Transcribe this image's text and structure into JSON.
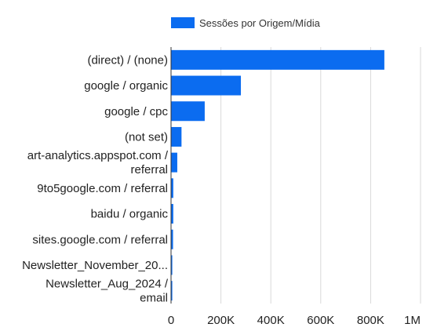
{
  "chart_data": {
    "type": "bar",
    "orientation": "horizontal",
    "legend": {
      "label": "Sessões por Origem/Mídia",
      "position": "top",
      "color": "#0b6cf0"
    },
    "categories": [
      [
        "(direct) / (none)"
      ],
      [
        "google / organic"
      ],
      [
        "google / cpc"
      ],
      [
        "(not set)"
      ],
      [
        "art-analytics.appspot.com /",
        "referral"
      ],
      [
        "9to5google.com / referral"
      ],
      [
        "baidu / organic"
      ],
      [
        "sites.google.com / referral"
      ],
      [
        "Newsletter_November_20..."
      ],
      [
        "Newsletter_Aug_2024 /",
        "email"
      ]
    ],
    "series": [
      {
        "name": "Sessões por Origem/Mídia",
        "values": [
          855000,
          280000,
          135000,
          42000,
          25000,
          9000,
          9000,
          8000,
          5000,
          5000
        ]
      }
    ],
    "xlim": [
      0,
      1000000
    ],
    "xticks": [
      0,
      200000,
      400000,
      600000,
      800000,
      1000000
    ],
    "xtick_labels": [
      "0",
      "200K",
      "400K",
      "600K",
      "800K",
      "1M"
    ],
    "grid": true,
    "bar_color": "#0b6cf0"
  }
}
